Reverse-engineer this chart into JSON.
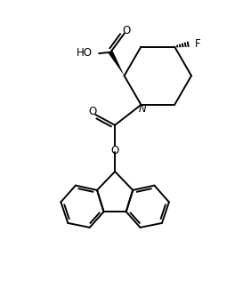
{
  "bg_color": "#ffffff",
  "line_color": "#000000",
  "line_width": 1.4,
  "fig_width": 2.82,
  "fig_height": 3.24,
  "dpi": 100,
  "xlim": [
    0,
    10
  ],
  "ylim": [
    0,
    11.5
  ]
}
